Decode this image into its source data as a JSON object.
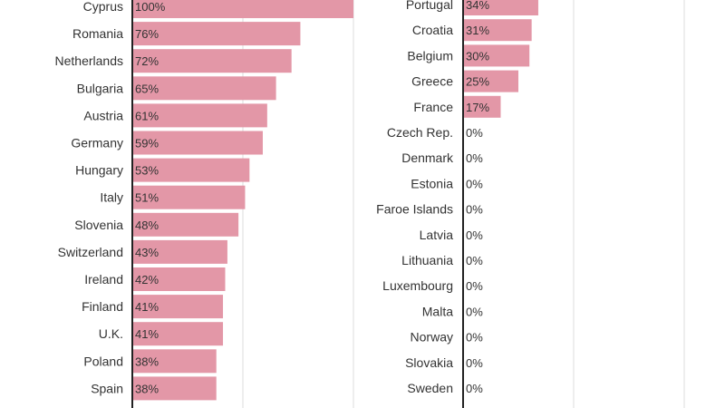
{
  "colors": {
    "bar": "#e397a7",
    "bar_stroke": "#ffffff",
    "axis": "#222222",
    "grid": "#dcdcdc",
    "text": "#333333"
  },
  "chart_data": [
    {
      "type": "bar",
      "orientation": "horizontal",
      "title": "",
      "xlabel": "",
      "ylabel": "",
      "xlim": [
        0,
        100
      ],
      "grid": true,
      "categories": [
        "Cyprus",
        "Romania",
        "Netherlands",
        "Bulgaria",
        "Austria",
        "Germany",
        "Hungary",
        "Italy",
        "Slovenia",
        "Switzerland",
        "Ireland",
        "Finland",
        "U.K.",
        "Poland",
        "Spain"
      ],
      "values": [
        100,
        76,
        72,
        65,
        61,
        59,
        53,
        51,
        48,
        43,
        42,
        41,
        41,
        38,
        38
      ],
      "value_labels": [
        "100%",
        "76%",
        "72%",
        "65%",
        "61%",
        "59%",
        "53%",
        "51%",
        "48%",
        "43%",
        "42%",
        "41%",
        "41%",
        "38%",
        "38%"
      ]
    },
    {
      "type": "bar",
      "orientation": "horizontal",
      "title": "",
      "xlabel": "",
      "ylabel": "",
      "xlim": [
        0,
        100
      ],
      "grid": true,
      "categories": [
        "Portugal",
        "Croatia",
        "Belgium",
        "Greece",
        "France",
        "Czech Rep.",
        "Denmark",
        "Estonia",
        "Faroe Islands",
        "Latvia",
        "Lithuania",
        "Luxembourg",
        "Malta",
        "Norway",
        "Slovakia",
        "Sweden"
      ],
      "values": [
        34,
        31,
        30,
        25,
        17,
        0,
        0,
        0,
        0,
        0,
        0,
        0,
        0,
        0,
        0,
        0
      ],
      "value_labels": [
        "34%",
        "31%",
        "30%",
        "25%",
        "17%",
        "0%",
        "0%",
        "0%",
        "0%",
        "0%",
        "0%",
        "0%",
        "0%",
        "0%",
        "0%",
        "0%"
      ]
    }
  ]
}
